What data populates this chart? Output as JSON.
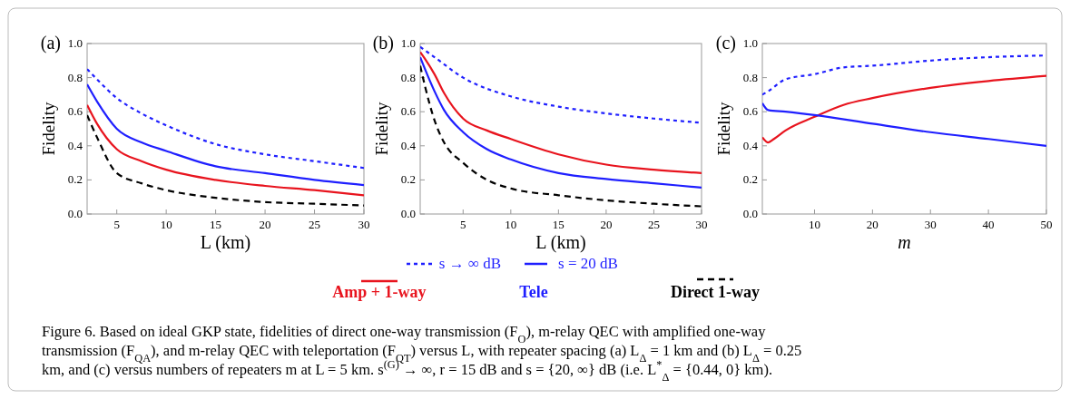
{
  "chart_data": [
    {
      "type": "line",
      "title": "(a)",
      "xlabel": "L (km)",
      "ylabel": "Fidelity",
      "xlim": [
        2,
        30
      ],
      "xticks": [
        5,
        10,
        15,
        20,
        25,
        30
      ],
      "ylim": [
        0,
        1
      ],
      "yticks": [
        {
          "value": 0,
          "label": "0.0"
        },
        {
          "value": 0.2,
          "label": "0.2"
        },
        {
          "value": 0.4,
          "label": "0.4"
        },
        {
          "value": 0.6,
          "label": "0.6"
        },
        {
          "value": 0.8,
          "label": "0.8"
        },
        {
          "value": 1,
          "label": "1.0"
        }
      ],
      "marker": "none",
      "series": [
        {
          "color": "#1f1fff",
          "line_style": "dotted",
          "x": [
            2,
            3,
            5,
            7.5,
            10,
            15,
            20,
            25,
            30
          ],
          "values": [
            0.85,
            0.79,
            0.68,
            0.59,
            0.52,
            0.41,
            0.35,
            0.31,
            0.27
          ]
        },
        {
          "color": "#1f1fff",
          "line_style": "solid",
          "x": [
            2,
            3,
            5,
            7.5,
            10,
            15,
            20,
            25,
            30
          ],
          "values": [
            0.76,
            0.66,
            0.5,
            0.42,
            0.37,
            0.28,
            0.24,
            0.2,
            0.17
          ]
        },
        {
          "color": "#e8141e",
          "line_style": "solid",
          "x": [
            2,
            3,
            5,
            7.5,
            10,
            15,
            20,
            25,
            30
          ],
          "values": [
            0.64,
            0.53,
            0.38,
            0.31,
            0.26,
            0.2,
            0.165,
            0.14,
            0.11
          ]
        },
        {
          "color": "#000000",
          "line_style": "dashed",
          "x": [
            2,
            3,
            5,
            7.5,
            10,
            15,
            20,
            25,
            30
          ],
          "values": [
            0.58,
            0.45,
            0.24,
            0.18,
            0.14,
            0.095,
            0.07,
            0.06,
            0.05
          ]
        }
      ]
    },
    {
      "type": "line",
      "title": "(b)",
      "xlabel": "L (km)",
      "ylabel": "Fidelity",
      "xlim": [
        0.5,
        30
      ],
      "xticks": [
        5,
        10,
        15,
        20,
        25,
        30
      ],
      "ylim": [
        0,
        1
      ],
      "yticks": [
        {
          "value": 0,
          "label": "0.0"
        },
        {
          "value": 0.2,
          "label": "0.2"
        },
        {
          "value": 0.4,
          "label": "0.4"
        },
        {
          "value": 0.6,
          "label": "0.6"
        },
        {
          "value": 0.8,
          "label": "0.8"
        },
        {
          "value": 1,
          "label": "1.0"
        }
      ],
      "marker": "none",
      "legend": "bottom",
      "legend_title": "Tele",
      "series": [
        {
          "name": "Amp + 1-way",
          "color": "#e8141e",
          "line_style": "solid",
          "x": [
            0.5,
            1,
            2,
            3,
            5,
            7.5,
            10,
            15,
            20,
            25,
            30
          ],
          "values": [
            0.95,
            0.91,
            0.82,
            0.71,
            0.56,
            0.49,
            0.44,
            0.35,
            0.29,
            0.26,
            0.24
          ]
        },
        {
          "name": "s → ∞ dB",
          "color": "#1f1fff",
          "line_style": "dotted",
          "x": [
            0.5,
            2,
            5,
            10,
            15,
            20,
            25,
            30
          ],
          "values": [
            0.98,
            0.92,
            0.8,
            0.69,
            0.63,
            0.59,
            0.56,
            0.535
          ]
        },
        {
          "name": "s = 20 dB",
          "color": "#1f1fff",
          "line_style": "solid",
          "x": [
            0.5,
            1,
            2,
            3,
            5,
            7.5,
            10,
            15,
            20,
            25,
            30
          ],
          "values": [
            0.92,
            0.85,
            0.72,
            0.61,
            0.48,
            0.38,
            0.32,
            0.24,
            0.205,
            0.18,
            0.155
          ]
        },
        {
          "name": "Direct 1-way",
          "color": "#000000",
          "line_style": "dashed",
          "x": [
            0.5,
            1,
            2,
            3,
            5,
            7.5,
            10,
            15,
            20,
            25,
            30
          ],
          "values": [
            0.87,
            0.75,
            0.55,
            0.42,
            0.3,
            0.2,
            0.15,
            0.11,
            0.08,
            0.06,
            0.045
          ]
        }
      ]
    },
    {
      "type": "line",
      "title": "(c)",
      "xlabel": "m",
      "ylabel": "Fidelity",
      "xlim": [
        1,
        50
      ],
      "xticks": [
        10,
        20,
        30,
        40,
        50
      ],
      "ylim": [
        0,
        1
      ],
      "yticks": [
        {
          "value": 0,
          "label": "0.0"
        },
        {
          "value": 0.2,
          "label": "0.2"
        },
        {
          "value": 0.4,
          "label": "0.4"
        },
        {
          "value": 0.6,
          "label": "0.6"
        },
        {
          "value": 0.8,
          "label": "0.8"
        },
        {
          "value": 1,
          "label": "1.0"
        }
      ],
      "marker": "none",
      "annotations": [
        "Figure 6.  Based on ideal GKP state, fidelities of direct one-way transmission (F$_{O}$), m-relay QEC with amplified one-way",
        "transmission (F$_{QA}$), and m-relay QEC with teleportation (F$_{QT}$) versus L, with repeater spacing (a) L$_{Δ}$ = 1 km and (b) L$_{Δ}$ = 0.25",
        "km, and (c) versus numbers of repeaters m at L = 5 km. s$^{(G)}$ → ∞, r = 15 dB and s = {20, ∞} dB (i.e. L$^{*}$$_{Δ}$ = {0.44, 0} km)."
      ],
      "series": [
        {
          "color": "#1f1fff",
          "line_style": "dotted",
          "x": [
            1,
            2,
            5,
            10,
            15,
            20,
            30,
            40,
            50
          ],
          "values": [
            0.7,
            0.72,
            0.79,
            0.82,
            0.86,
            0.87,
            0.9,
            0.92,
            0.93
          ]
        },
        {
          "color": "#e8141e",
          "line_style": "solid",
          "x": [
            1,
            2,
            3,
            5,
            10,
            15,
            20,
            30,
            40,
            50
          ],
          "values": [
            0.45,
            0.42,
            0.44,
            0.49,
            0.57,
            0.64,
            0.68,
            0.74,
            0.78,
            0.81
          ]
        },
        {
          "color": "#1f1fff",
          "line_style": "solid",
          "x": [
            1,
            2,
            5,
            10,
            20,
            30,
            40,
            50
          ],
          "values": [
            0.65,
            0.61,
            0.6,
            0.58,
            0.53,
            0.48,
            0.44,
            0.4
          ]
        }
      ]
    }
  ]
}
